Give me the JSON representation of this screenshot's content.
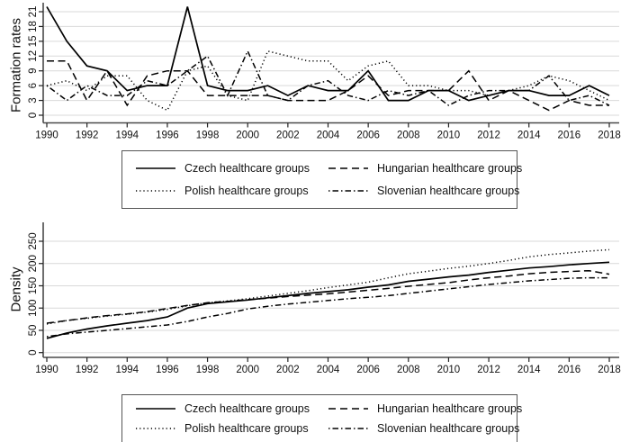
{
  "figure_background": "#ffffff",
  "colors": {
    "line": "#000000",
    "grid": "#d9d9d9",
    "axis": "#4a4a4a",
    "text": "#111111"
  },
  "chart_data": [
    {
      "type": "line",
      "title": "",
      "xlabel": "",
      "ylabel": "Formation rates",
      "x_range": [
        1990,
        2018
      ],
      "x_tick_labels": [
        "1990",
        "1992",
        "1994",
        "1996",
        "1998",
        "2000",
        "2002",
        "2004",
        "2006",
        "2008",
        "2010",
        "2012",
        "2014",
        "2016",
        "2018"
      ],
      "y_tick_labels": [
        "0",
        "3",
        "6",
        "9",
        "12",
        "15",
        "18",
        "21"
      ],
      "ylim": [
        0,
        23
      ],
      "grid": "horizontal",
      "legend_position": "below-boxed",
      "x": [
        1990,
        1991,
        1992,
        1993,
        1994,
        1995,
        1996,
        1997,
        1998,
        1999,
        2000,
        2001,
        2002,
        2003,
        2004,
        2005,
        2006,
        2007,
        2008,
        2009,
        2010,
        2011,
        2012,
        2013,
        2014,
        2015,
        2016,
        2017,
        2018
      ],
      "series": [
        {
          "name": "Czech healthcare groups",
          "style": "solid",
          "values": [
            22,
            15,
            10,
            9,
            5,
            6,
            6,
            22,
            6,
            5,
            5,
            6,
            4,
            6,
            5,
            5,
            9,
            3,
            3,
            5,
            5,
            3,
            4,
            5,
            5,
            4,
            4,
            6,
            4
          ]
        },
        {
          "name": "Hungarian healthcare groups",
          "style": "dashed",
          "values": [
            11,
            11,
            3,
            9,
            2,
            8,
            9,
            9,
            4,
            4,
            4,
            4,
            3,
            3,
            3,
            5,
            8,
            4,
            5,
            5,
            5,
            9,
            3,
            5,
            3,
            1,
            3,
            2,
            2
          ]
        },
        {
          "name": "Polish healthcare groups",
          "style": "dotted",
          "values": [
            6,
            7,
            5,
            8,
            8,
            3,
            1,
            9,
            10,
            4,
            3,
            13,
            12,
            11,
            11,
            7,
            10,
            11,
            6,
            6,
            5,
            5,
            4,
            5,
            6,
            8,
            7,
            5,
            3
          ]
        },
        {
          "name": "Slovenian healthcare groups",
          "style": "dashdot",
          "values": [
            6,
            3,
            6,
            4,
            4,
            7,
            6,
            9,
            12,
            4,
            13,
            4,
            3,
            6,
            7,
            4,
            3,
            5,
            4,
            5,
            2,
            4,
            5,
            5,
            5,
            8,
            3,
            4,
            2
          ]
        }
      ]
    },
    {
      "type": "line",
      "title": "",
      "xlabel": "",
      "ylabel": "Density",
      "x_range": [
        1990,
        2018
      ],
      "x_tick_labels": [
        "1990",
        "1992",
        "1994",
        "1996",
        "1998",
        "2000",
        "2002",
        "2004",
        "2006",
        "2008",
        "2010",
        "2012",
        "2014",
        "2016",
        "2018"
      ],
      "y_tick_labels": [
        "0",
        "50",
        "100",
        "150",
        "200",
        "250"
      ],
      "ylim": [
        0,
        260
      ],
      "grid": "horizontal",
      "legend_position": "below-boxed",
      "x": [
        1990,
        1991,
        1992,
        1993,
        1994,
        1995,
        1996,
        1997,
        1998,
        1999,
        2000,
        2001,
        2002,
        2003,
        2004,
        2005,
        2006,
        2007,
        2008,
        2009,
        2010,
        2011,
        2012,
        2013,
        2014,
        2015,
        2016,
        2017,
        2018
      ],
      "series": [
        {
          "name": "Czech healthcare groups",
          "style": "solid",
          "values": [
            32,
            44,
            53,
            60,
            66,
            72,
            80,
            100,
            110,
            114,
            118,
            123,
            128,
            133,
            137,
            141,
            147,
            152,
            160,
            165,
            170,
            174,
            180,
            185,
            190,
            193,
            197,
            200,
            203
          ]
        },
        {
          "name": "Hungarian healthcare groups",
          "style": "dashed",
          "values": [
            66,
            72,
            78,
            83,
            87,
            92,
            99,
            106,
            112,
            115,
            119,
            122,
            126,
            129,
            132,
            136,
            140,
            144,
            149,
            153,
            157,
            163,
            168,
            172,
            177,
            180,
            182,
            184,
            176
          ]
        },
        {
          "name": "Polish healthcare groups",
          "style": "dotted",
          "values": [
            64,
            72,
            77,
            82,
            86,
            91,
            97,
            105,
            112,
            116,
            121,
            127,
            133,
            139,
            146,
            152,
            158,
            168,
            177,
            183,
            189,
            194,
            200,
            207,
            215,
            220,
            224,
            228,
            231
          ]
        },
        {
          "name": "Slovenian healthcare groups",
          "style": "dashdot",
          "values": [
            36,
            42,
            46,
            50,
            54,
            58,
            62,
            70,
            80,
            88,
            98,
            104,
            109,
            113,
            117,
            121,
            124,
            128,
            133,
            138,
            143,
            148,
            153,
            157,
            161,
            164,
            167,
            168,
            168
          ]
        }
      ]
    }
  ]
}
